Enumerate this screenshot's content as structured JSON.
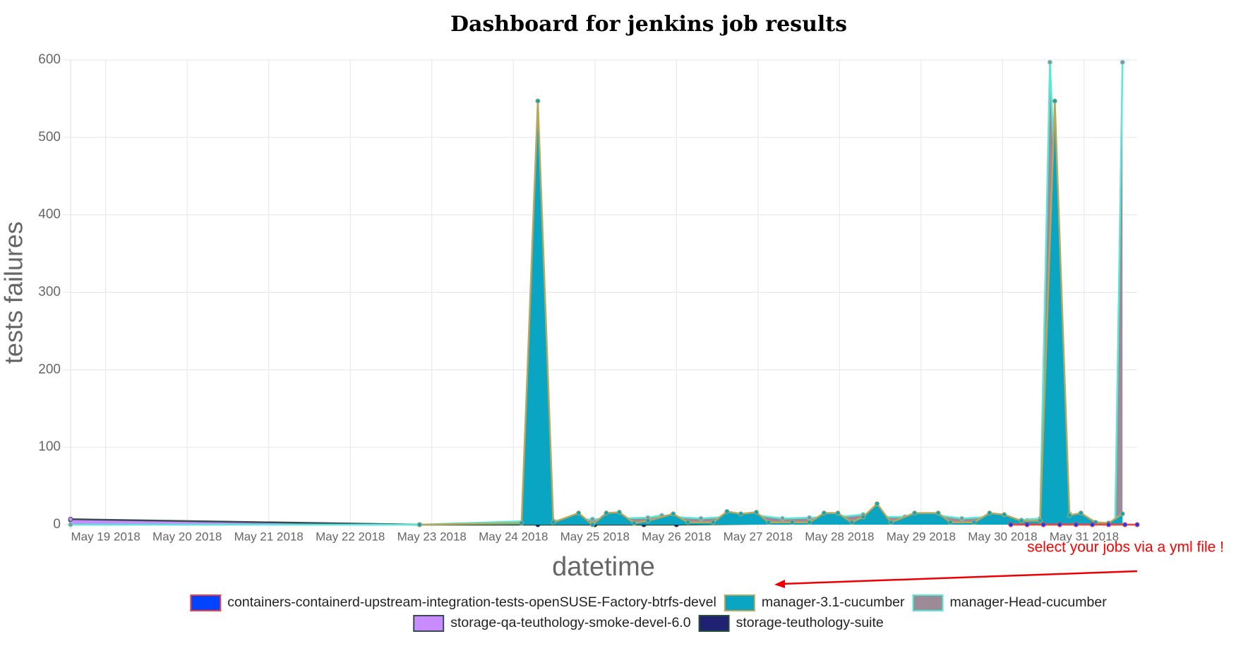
{
  "chart_data": {
    "type": "area",
    "title": "Dashboard for jenkins job results",
    "x_label": "datetime",
    "y_label": "tests failures",
    "annotation": "select your jobs via a yml file !",
    "xlim": [
      18.57,
      31.65
    ],
    "ylim": [
      0,
      600
    ],
    "yticks": [
      0,
      100,
      200,
      300,
      400,
      500,
      600
    ],
    "grid": true,
    "xticks": [
      {
        "value": 19,
        "label": "May 19 2018"
      },
      {
        "value": 20,
        "label": "May 20 2018"
      },
      {
        "value": 21,
        "label": "May 21 2018"
      },
      {
        "value": 22,
        "label": "May 22 2018"
      },
      {
        "value": 23,
        "label": "May 23 2018"
      },
      {
        "value": 24,
        "label": "May 24 2018"
      },
      {
        "value": 25,
        "label": "May 25 2018"
      },
      {
        "value": 26,
        "label": "May 26 2018"
      },
      {
        "value": 27,
        "label": "May 27 2018"
      },
      {
        "value": 28,
        "label": "May 28 2018"
      },
      {
        "value": 29,
        "label": "May 29 2018"
      },
      {
        "value": 30,
        "label": "May 30 2018"
      },
      {
        "value": 31,
        "label": "May 31 2018"
      }
    ],
    "series": [
      {
        "name": "containers-containerd-upstream-integration-tests-openSUSE-Factory-btrfs-devel",
        "color": "#0044ff",
        "border_color": "#ff3b3b",
        "x": [
          30.1,
          30.3,
          30.5,
          30.7,
          30.9,
          31.1,
          31.3,
          31.5,
          31.65
        ],
        "values": [
          0,
          0,
          0,
          0,
          0,
          0,
          0,
          0,
          0
        ]
      },
      {
        "name": "manager-3.1-cucumber",
        "color": "#0aa5c3",
        "border_color": "#b8a85e",
        "x": [
          22.85,
          24.1,
          24.3,
          24.49,
          24.8,
          24.97,
          25.14,
          25.3,
          25.48,
          25.65,
          25.96,
          26.14,
          26.45,
          26.62,
          26.79,
          26.98,
          27.13,
          27.42,
          27.63,
          27.81,
          27.98,
          28.15,
          28.29,
          28.46,
          28.63,
          28.92,
          29.21,
          29.36,
          29.65,
          29.84,
          30.02,
          30.23,
          30.46,
          30.64,
          30.82,
          30.96,
          31.14,
          31.3,
          31.47
        ],
        "values": [
          0,
          2,
          547,
          3,
          15,
          0,
          15,
          16,
          2,
          5,
          14,
          3,
          3,
          17,
          14,
          16,
          3,
          3,
          3,
          15,
          15,
          3,
          10,
          27,
          3,
          15,
          15,
          3,
          3,
          15,
          13,
          5,
          5,
          547,
          12,
          15,
          3,
          2,
          14
        ]
      },
      {
        "name": "manager-Head-cucumber",
        "color": "#9c8b96",
        "border_color": "#56e8d8",
        "x": [
          18.57,
          22.85,
          24.3,
          24.49,
          24.97,
          25.3,
          25.65,
          25.82,
          25.96,
          26.3,
          26.62,
          26.98,
          27.3,
          27.63,
          27.98,
          28.29,
          28.46,
          28.8,
          29.21,
          29.5,
          29.84,
          30.23,
          30.46,
          30.58,
          30.82,
          31.14,
          31.38,
          31.47
        ],
        "values": [
          0,
          0,
          5,
          5,
          7,
          8,
          9,
          12,
          10,
          8,
          10,
          12,
          8,
          9,
          10,
          13,
          10,
          10,
          12,
          8,
          10,
          6,
          8,
          597,
          14,
          3,
          2,
          597
        ]
      },
      {
        "name": "storage-qa-teuthology-smoke-devel-6.0",
        "color": "#c88cff",
        "border_color": "#3a4a55",
        "x": [
          18.57,
          22.85
        ],
        "values": [
          7,
          0
        ]
      },
      {
        "name": "storage-teuthology-suite",
        "color": "#1f2270",
        "border_color": "#2a4d3a",
        "x": [
          18.57,
          22.85,
          24.3,
          25.0,
          25.6,
          26.0,
          30.3,
          30.5
        ],
        "values": [
          6,
          0,
          0,
          0,
          0,
          0,
          5,
          0
        ]
      }
    ]
  }
}
